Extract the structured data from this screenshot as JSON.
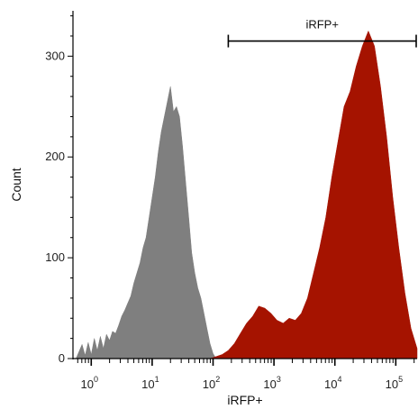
{
  "chart_data": {
    "type": "area",
    "title": "",
    "xlabel": "iRFP+",
    "ylabel": "Count",
    "xscale": "log",
    "xlim_log10": [
      -0.3,
      5.35
    ],
    "ylim": [
      0,
      345
    ],
    "grid": false,
    "legend": "none",
    "x_tick_labels": [
      {
        "base": "10",
        "exp": "0",
        "value_log10": 0
      },
      {
        "base": "10",
        "exp": "1",
        "value_log10": 1
      },
      {
        "base": "10",
        "exp": "2",
        "value_log10": 2
      },
      {
        "base": "10",
        "exp": "3",
        "value_log10": 3
      },
      {
        "base": "10",
        "exp": "4",
        "value_log10": 4
      },
      {
        "base": "10",
        "exp": "5",
        "value_log10": 5
      }
    ],
    "y_ticks": [
      0,
      100,
      200,
      300
    ],
    "y_tick_labels": [
      "0",
      "100",
      "200",
      "300"
    ],
    "gate": {
      "label": "iRFP+",
      "start_log10": 2.25,
      "end_log10": 5.35,
      "y": 315
    },
    "series": [
      {
        "color": "#7f7f7f",
        "x_log10": [
          -0.25,
          -0.15,
          -0.1,
          -0.05,
          0.0,
          0.05,
          0.1,
          0.15,
          0.2,
          0.25,
          0.3,
          0.35,
          0.4,
          0.45,
          0.5,
          0.55,
          0.6,
          0.65,
          0.7,
          0.75,
          0.8,
          0.85,
          0.9,
          0.95,
          1.0,
          1.05,
          1.1,
          1.15,
          1.2,
          1.25,
          1.3,
          1.35,
          1.4,
          1.45,
          1.5,
          1.55,
          1.6,
          1.65,
          1.7,
          1.75,
          1.8,
          1.85,
          1.9,
          1.95,
          2.0,
          2.05
        ],
        "values": [
          0,
          14,
          3,
          16,
          4,
          20,
          8,
          22,
          10,
          24,
          18,
          27,
          25,
          33,
          42,
          48,
          55,
          62,
          75,
          85,
          95,
          110,
          120,
          140,
          160,
          180,
          205,
          225,
          240,
          255,
          270,
          245,
          250,
          240,
          210,
          175,
          140,
          105,
          85,
          70,
          60,
          45,
          30,
          15,
          5,
          0
        ]
      },
      {
        "color": "#a51300",
        "x_log10": [
          1.95,
          2.05,
          2.15,
          2.25,
          2.35,
          2.45,
          2.55,
          2.65,
          2.75,
          2.85,
          2.95,
          3.05,
          3.15,
          3.25,
          3.35,
          3.45,
          3.55,
          3.65,
          3.75,
          3.85,
          3.95,
          4.05,
          4.15,
          4.25,
          4.35,
          4.45,
          4.55,
          4.65,
          4.75,
          4.85,
          4.95,
          5.05,
          5.15,
          5.25,
          5.35
        ],
        "values": [
          0,
          2,
          4,
          8,
          15,
          25,
          35,
          42,
          52,
          50,
          45,
          38,
          35,
          40,
          38,
          45,
          60,
          85,
          110,
          140,
          180,
          215,
          250,
          265,
          290,
          310,
          325,
          310,
          270,
          220,
          160,
          110,
          65,
          30,
          10
        ]
      }
    ]
  }
}
